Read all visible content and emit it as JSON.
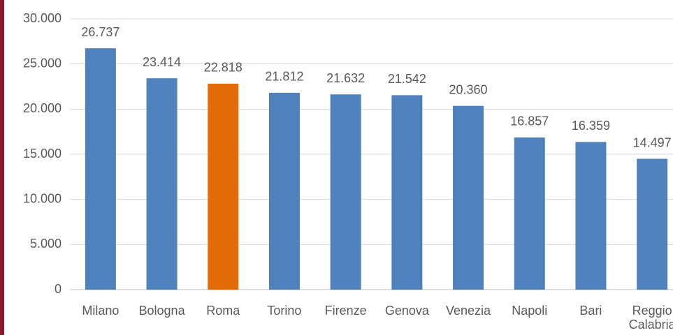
{
  "chart_data": {
    "type": "bar",
    "categories": [
      "Milano",
      "Bologna",
      "Roma",
      "Torino",
      "Firenze",
      "Genova",
      "Venezia",
      "Napoli",
      "Bari",
      "Reggio Calabria"
    ],
    "values": [
      26737,
      23414,
      22818,
      21812,
      21632,
      21542,
      20360,
      16857,
      16359,
      14497
    ],
    "value_labels": [
      "26.737",
      "23.414",
      "22.818",
      "21.812",
      "21.632",
      "21.542",
      "20.360",
      "16.857",
      "16.359",
      "14.497"
    ],
    "colors": [
      "#4f81bd",
      "#4f81bd",
      "#e36c09",
      "#4f81bd",
      "#4f81bd",
      "#4f81bd",
      "#4f81bd",
      "#4f81bd",
      "#4f81bd",
      "#4f81bd"
    ],
    "ylim": [
      0,
      30000
    ],
    "yticks": [
      0,
      {
        "value": 5000,
        "label": "5.000"
      },
      {
        "value": 10000,
        "label": "10.000"
      },
      {
        "value": 15000,
        "label": "15.000"
      },
      {
        "value": 20000,
        "label": "20.000"
      },
      {
        "value": 25000,
        "label": "25.000"
      },
      {
        "value": 30000,
        "label": "30.000"
      }
    ],
    "grid": true
  }
}
